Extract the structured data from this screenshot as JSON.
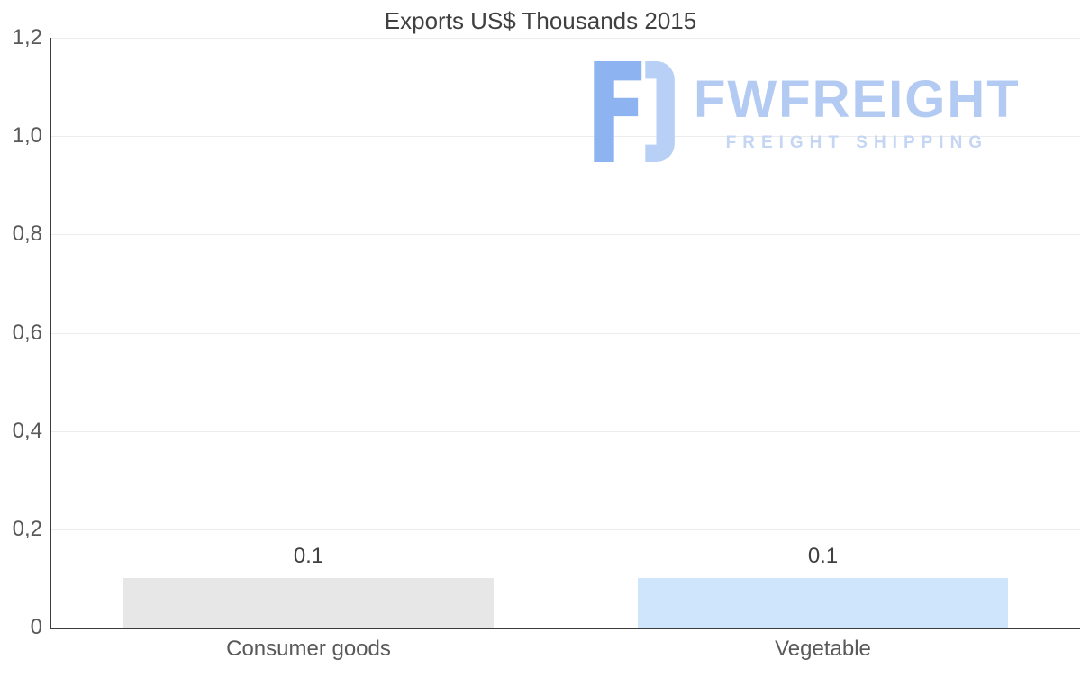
{
  "title": "Exports US$ Thousands 2015",
  "watermark": {
    "brand": "FWFREIGHT",
    "tagline": "FREIGHT SHIPPING",
    "brand_color": "#b3cbf3",
    "icon_color": "#8db4f1"
  },
  "chart_data": {
    "type": "bar",
    "title": "Exports US$ Thousands 2015",
    "categories": [
      "Consumer goods",
      "Vegetable"
    ],
    "values": [
      0.1,
      0.1
    ],
    "value_labels": [
      "0.1",
      "0.1"
    ],
    "bar_colors": [
      "#e7e7e7",
      "#cfe5fb"
    ],
    "ylim": [
      0,
      1.2
    ],
    "yticks": [
      {
        "value": 0,
        "label": "0"
      },
      {
        "value": 0.2,
        "label": "0,2"
      },
      {
        "value": 0.4,
        "label": "0,4"
      },
      {
        "value": 0.6,
        "label": "0,6"
      },
      {
        "value": 0.8,
        "label": "0,8"
      },
      {
        "value": 1.0,
        "label": "1,0"
      },
      {
        "value": 1.2,
        "label": "1,2"
      }
    ],
    "grid": true,
    "legend": false,
    "xlabel": "",
    "ylabel": ""
  }
}
